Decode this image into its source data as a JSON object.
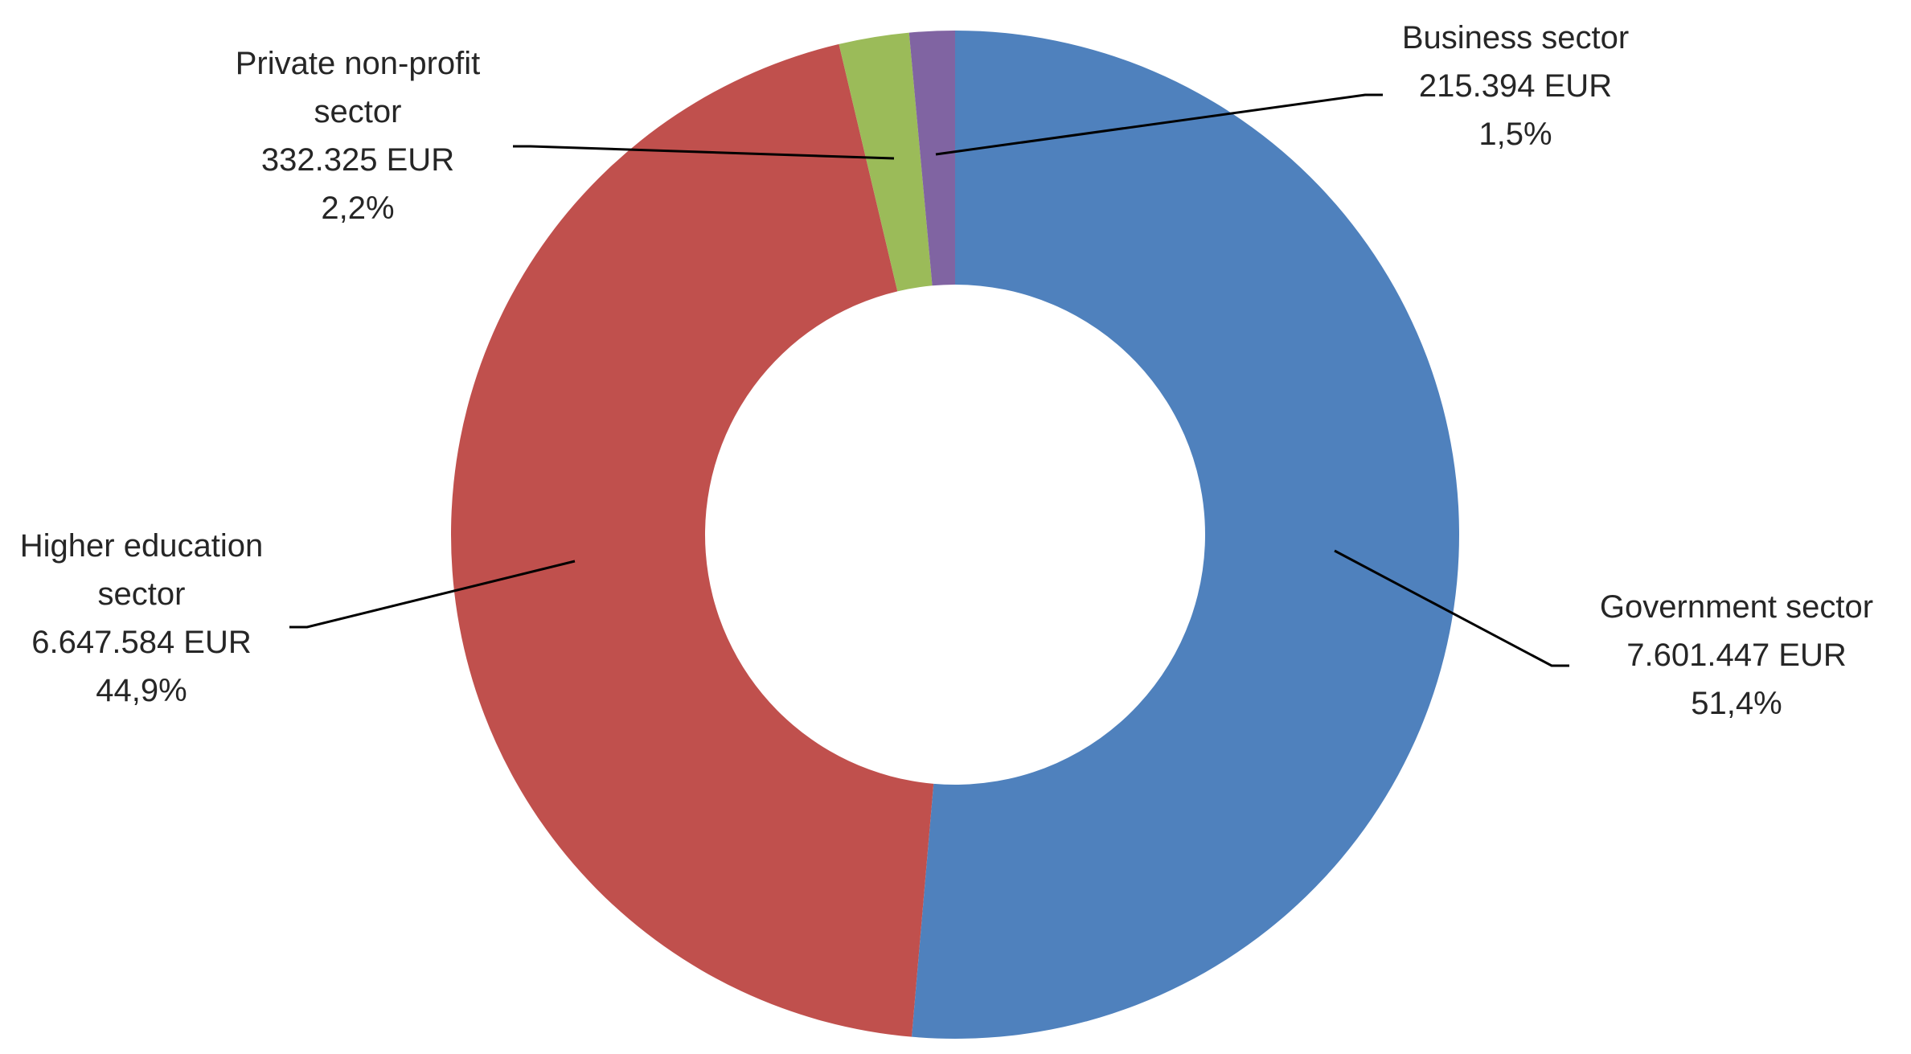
{
  "chart_data": {
    "type": "pie",
    "variant": "doughnut",
    "legend": "none",
    "slices": [
      {
        "name": "Government sector",
        "label_lines": [
          "Government sector"
        ],
        "amount": 7601447,
        "amount_label": "7.601.447 EUR",
        "percent": 51.4,
        "percent_label": "51,4%",
        "color": "#4F81BD"
      },
      {
        "name": "Higher education sector",
        "label_lines": [
          "Higher education",
          "sector"
        ],
        "amount": 6647584,
        "amount_label": "6.647.584 EUR",
        "percent": 44.9,
        "percent_label": "44,9%",
        "color": "#C0504D"
      },
      {
        "name": "Private non-profit sector",
        "label_lines": [
          "Private non-profit",
          "sector"
        ],
        "amount": 332325,
        "amount_label": "332.325 EUR",
        "percent": 2.2,
        "percent_label": "2,2%",
        "color": "#9BBB59"
      },
      {
        "name": "Business sector",
        "label_lines": [
          "Business sector"
        ],
        "amount": 215394,
        "amount_label": "215.394 EUR",
        "percent": 1.5,
        "percent_label": "1,5%",
        "color": "#8064A2"
      }
    ]
  }
}
